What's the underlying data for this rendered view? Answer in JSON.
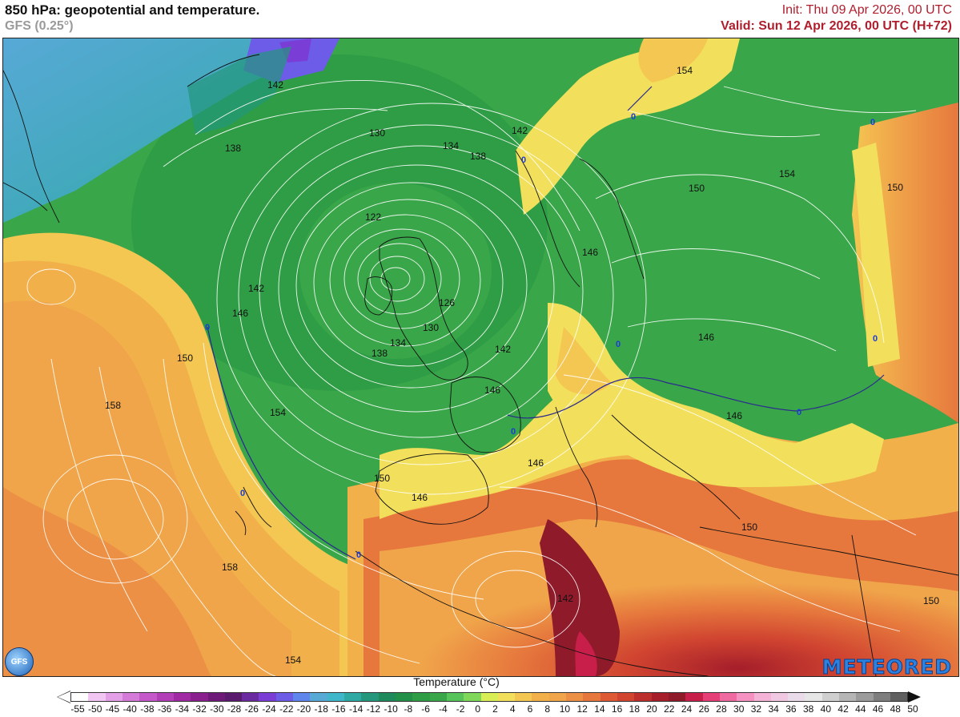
{
  "header": {
    "title": "850 hPa: geopotential and temperature.",
    "model": "GFS (0.25°)",
    "init": "Init: Thu 09 Apr 2026, 00 UTC",
    "valid": "Valid: Sun 12 Apr 2026, 00 UTC (H+72)"
  },
  "map": {
    "geopotential_labels": [
      "142",
      "138",
      "130",
      "134",
      "138",
      "142",
      "154",
      "154",
      "150",
      "122",
      "146",
      "142",
      "146",
      "126",
      "130",
      "134",
      "138",
      "142",
      "146",
      "146",
      "150",
      "158",
      "154",
      "150",
      "146",
      "146",
      "146",
      "158",
      "142",
      "154",
      "150",
      "150"
    ],
    "zero_isotherm_label": "0",
    "colors": {
      "cold": "#57a9d6",
      "green": "#3aa64a",
      "yellow": "#f2e05c",
      "orange": "#f0a54a",
      "red": "#de5a35",
      "darkred": "#a51e2a"
    }
  },
  "branding": {
    "model_logo": "GFS",
    "provider": "METEORED"
  },
  "legend": {
    "title": "Temperature (°C)",
    "ticks": [
      "-55",
      "-50",
      "-45",
      "-40",
      "-38",
      "-36",
      "-34",
      "-32",
      "-30",
      "-28",
      "-26",
      "-24",
      "-22",
      "-20",
      "-18",
      "-16",
      "-14",
      "-12",
      "-10",
      "-8",
      "-6",
      "-4",
      "-2",
      "0",
      "2",
      "4",
      "6",
      "8",
      "10",
      "12",
      "14",
      "16",
      "18",
      "20",
      "22",
      "24",
      "26",
      "28",
      "30",
      "32",
      "34",
      "36",
      "38",
      "40",
      "42",
      "44",
      "46",
      "48",
      "50"
    ],
    "colors": [
      "#ffffff",
      "#f2c6f2",
      "#e4a0e6",
      "#d47ad8",
      "#c559c9",
      "#b23fb8",
      "#9f2aa3",
      "#8a1f8e",
      "#6e1a78",
      "#5a1a6e",
      "#6a2ba0",
      "#7a3dd6",
      "#6c5ce8",
      "#5f86ec",
      "#57a9d6",
      "#3fb6c9",
      "#2ea9a3",
      "#24977c",
      "#1f8a5b",
      "#23904a",
      "#2e9d45",
      "#3aa64a",
      "#56c45a",
      "#7fd85a",
      "#d9ee55",
      "#f2e05c",
      "#f4c752",
      "#f2b04b",
      "#f0a54a",
      "#ec9045",
      "#e6783d",
      "#de5a35",
      "#d04430",
      "#bd2f2c",
      "#a51e2a",
      "#8f1a2a",
      "#c81e4a",
      "#e63f78",
      "#f06aa2",
      "#f592c2",
      "#f6b3d8",
      "#f0c8e2",
      "#e9dbe9",
      "#e6e6e6",
      "#cfcfcf",
      "#b5b5b5",
      "#9b9b9b",
      "#7e7e7e",
      "#606060"
    ]
  }
}
